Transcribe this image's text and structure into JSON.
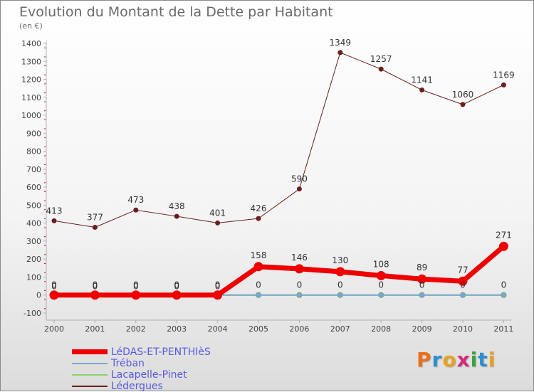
{
  "header": {
    "title": "Evolution du Montant de la Dette par Habitant",
    "unit": "(en €)"
  },
  "brand": {
    "letters": [
      {
        "ch": "P",
        "color": "#e8701c"
      },
      {
        "ch": "r",
        "color": "#2c8fd0"
      },
      {
        "ch": "o",
        "color": "#e8a21c"
      },
      {
        "ch": "x",
        "color": "#d62a7a"
      },
      {
        "ch": "i",
        "color": "#3aa43a"
      },
      {
        "ch": "t",
        "color": "#2c8fd0"
      },
      {
        "ch": "i",
        "color": "#e8a21c"
      }
    ]
  },
  "chart_data": {
    "type": "line",
    "title": "Evolution du Montant de la Dette par Habitant",
    "xlabel": "",
    "ylabel": "(en €)",
    "categories": [
      "2000",
      "2001",
      "2002",
      "2003",
      "2004",
      "2005",
      "2006",
      "2007",
      "2008",
      "2009",
      "2010",
      "2011"
    ],
    "yticks": [
      -100,
      0,
      100,
      200,
      300,
      400,
      500,
      600,
      700,
      800,
      900,
      1000,
      1100,
      1200,
      1300,
      1400
    ],
    "ylim": [
      -100,
      1400
    ],
    "series": [
      {
        "name": "Lédergues",
        "color": "#6b1e1e",
        "values": [
          413,
          377,
          473,
          438,
          401,
          426,
          590,
          1349,
          1257,
          1141,
          1060,
          1169
        ]
      },
      {
        "name": "Lacapelle-Pinet",
        "color": "#8ed06c",
        "values": [
          0,
          0,
          0,
          0,
          0,
          0,
          0,
          0,
          0,
          0,
          0,
          0
        ]
      },
      {
        "name": "Tréban",
        "color": "#7ea6cc",
        "values": [
          0,
          0,
          0,
          0,
          0,
          0,
          0,
          0,
          0,
          0,
          0,
          0
        ]
      },
      {
        "name": "LéDAS-ET-PENTHIèS",
        "color": "#ee0000",
        "values": [
          0,
          0,
          0,
          0,
          0,
          158,
          146,
          130,
          108,
          89,
          77,
          271
        ]
      }
    ],
    "legend": [
      "LéDAS-ET-PENTHIèS",
      "Tréban",
      "Lacapelle-Pinet",
      "Lédergues"
    ],
    "grid": false,
    "legend_position": "bottom-left"
  }
}
